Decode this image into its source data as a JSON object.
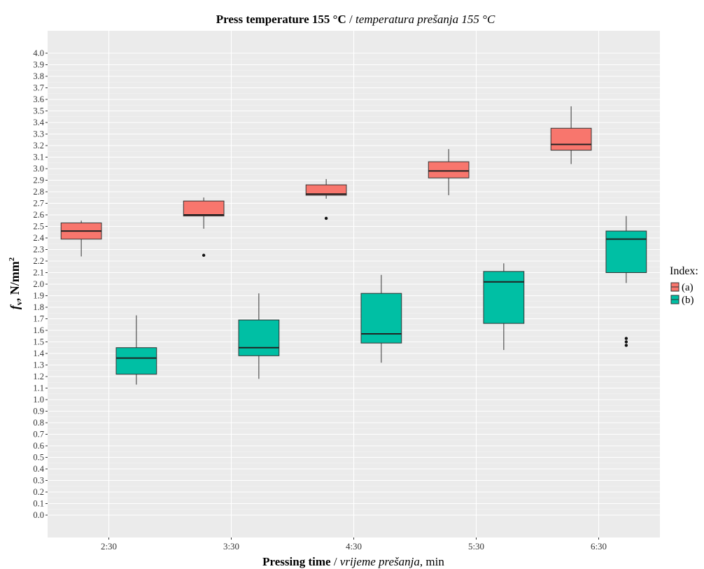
{
  "chart_data": {
    "type": "boxplot",
    "title": {
      "bold": "Press temperature 155 °C",
      "sep": " / ",
      "italic": "temperatura prešanja 155 °C"
    },
    "xlabel": {
      "bold": "Pressing time",
      "sep": " / ",
      "italic": "vrijeme prešanja",
      "tail": ", min"
    },
    "ylabel": {
      "italic": "f",
      "sub": "v",
      "rest": ", N/mm",
      "sup": "2"
    },
    "categories": [
      "2:30",
      "3:30",
      "4:30",
      "5:30",
      "6:30"
    ],
    "ylim": [
      -0.45,
      4.25
    ],
    "yticks": [
      "0.0",
      "0.1",
      "0.2",
      "0.3",
      "0.4",
      "0.5",
      "0.6",
      "0.7",
      "0.8",
      "0.9",
      "1.0",
      "1.1",
      "1.2",
      "1.3",
      "1.4",
      "1.5",
      "1.6",
      "1.7",
      "1.8",
      "1.9",
      "2.0",
      "2.1",
      "2.2",
      "2.3",
      "2.4",
      "2.5",
      "2.6",
      "2.7",
      "2.8",
      "2.9",
      "3.0",
      "3.1",
      "3.2",
      "3.3",
      "3.4",
      "3.5",
      "3.6",
      "3.7",
      "3.8",
      "3.9",
      "4.0"
    ],
    "grid": true,
    "legend": {
      "title": "Index:",
      "position": "right"
    },
    "series": [
      {
        "name": "(a)",
        "color": "#F8766D",
        "boxes": [
          {
            "min": 2.24,
            "q1": 2.39,
            "median": 2.46,
            "q3": 2.53,
            "max": 2.55,
            "outliers": []
          },
          {
            "min": 2.48,
            "q1": 2.59,
            "median": 2.6,
            "q3": 2.72,
            "max": 2.75,
            "outliers": [
              2.25
            ]
          },
          {
            "min": 2.74,
            "q1": 2.77,
            "median": 2.78,
            "q3": 2.86,
            "max": 2.91,
            "outliers": [
              2.57
            ]
          },
          {
            "min": 2.77,
            "q1": 2.92,
            "median": 2.98,
            "q3": 3.06,
            "max": 3.17,
            "outliers": []
          },
          {
            "min": 3.04,
            "q1": 3.16,
            "median": 3.21,
            "q3": 3.35,
            "max": 3.54,
            "outliers": []
          }
        ]
      },
      {
        "name": "(b)",
        "color": "#00BFA4",
        "boxes": [
          {
            "min": 1.13,
            "q1": 1.22,
            "median": 1.36,
            "q3": 1.45,
            "max": 1.73,
            "outliers": []
          },
          {
            "min": 1.18,
            "q1": 1.38,
            "median": 1.45,
            "q3": 1.69,
            "max": 1.92,
            "outliers": []
          },
          {
            "min": 1.32,
            "q1": 1.49,
            "median": 1.57,
            "q3": 1.92,
            "max": 2.08,
            "outliers": []
          },
          {
            "min": 1.43,
            "q1": 1.66,
            "median": 2.02,
            "q3": 2.11,
            "max": 2.18,
            "outliers": []
          },
          {
            "min": 2.01,
            "q1": 2.1,
            "median": 2.39,
            "q3": 2.46,
            "max": 2.59,
            "outliers": [
              1.47,
              1.5,
              1.53
            ]
          }
        ]
      }
    ]
  }
}
